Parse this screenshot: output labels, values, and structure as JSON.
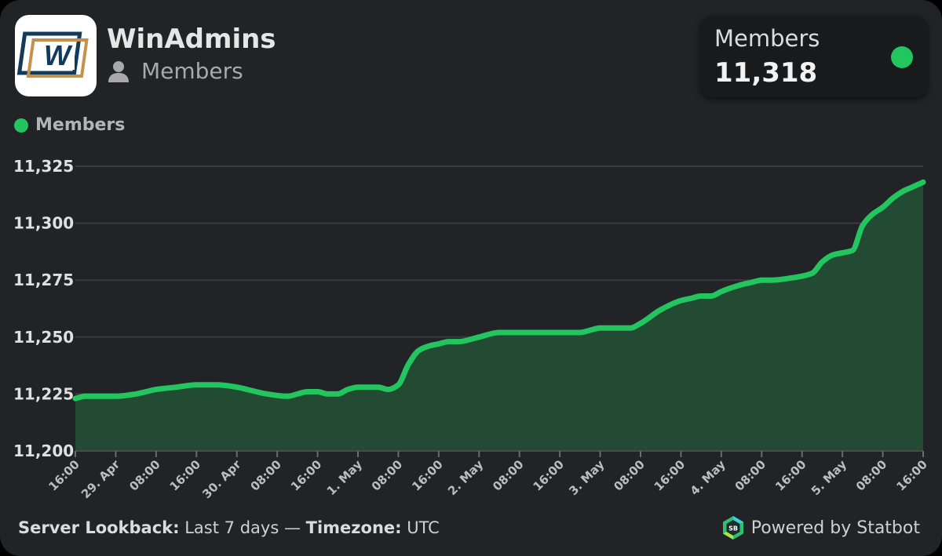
{
  "header": {
    "title": "WinAdmins",
    "subtitle": "Members",
    "logo_letter": "W"
  },
  "stat_card": {
    "label": "Members",
    "value": "11,318",
    "status_color": "#22c55e"
  },
  "legend": {
    "label": "Members"
  },
  "footer": {
    "lookback_label": "Server Lookback:",
    "lookback_value": "Last 7 days",
    "separator": "—",
    "timezone_label": "Timezone:",
    "timezone_value": "UTC",
    "powered_by": "Powered by Statbot",
    "statbot_logo_text": "SB"
  },
  "colors": {
    "background": "#222326",
    "accent": "#22c55e",
    "fill": "#234a33",
    "grid": "#3a3b3f"
  },
  "chart_data": {
    "type": "area",
    "title": "",
    "xlabel": "",
    "ylabel": "",
    "ylim": [
      11200,
      11325
    ],
    "yticks": [
      11200,
      11225,
      11250,
      11275,
      11300,
      11325
    ],
    "ytick_labels": [
      "11,200",
      "11,225",
      "11,250",
      "11,275",
      "11,300",
      "11,325"
    ],
    "xticks": [
      "16:00",
      "29. Apr",
      "08:00",
      "16:00",
      "30. Apr",
      "08:00",
      "16:00",
      "1. May",
      "08:00",
      "16:00",
      "2. May",
      "08:00",
      "16:00",
      "3. May",
      "08:00",
      "16:00",
      "4. May",
      "08:00",
      "16:00",
      "5. May",
      "08:00",
      "16:00"
    ],
    "xtick_hours": [
      0,
      8,
      16,
      24,
      32,
      40,
      48,
      56,
      64,
      72,
      80,
      88,
      96,
      104,
      112,
      120,
      128,
      136,
      144,
      152,
      160,
      168
    ],
    "grid": true,
    "legend_position": "top-left",
    "series": [
      {
        "name": "Members",
        "color": "#22c55e",
        "x_hours": [
          0,
          2,
          4,
          8,
          12,
          14,
          16,
          20,
          24,
          28,
          32,
          34,
          38,
          42,
          44,
          46,
          48,
          50,
          52,
          54,
          56,
          60,
          62,
          64,
          66,
          68,
          70,
          72,
          74,
          76,
          80,
          84,
          88,
          90,
          94,
          100,
          102,
          104,
          106,
          110,
          112,
          116,
          120,
          122,
          124,
          126,
          128,
          132,
          134,
          136,
          138,
          142,
          146,
          148,
          150,
          152,
          154,
          156,
          158,
          160,
          162,
          164,
          166,
          168
        ],
        "values": [
          11223,
          11224,
          11224,
          11224,
          11225,
          11226,
          11227,
          11228,
          11229,
          11229,
          11228,
          11227,
          11225,
          11224,
          11225,
          11226,
          11226,
          11225,
          11225,
          11227,
          11228,
          11228,
          11227,
          11229,
          11238,
          11244,
          11246,
          11247,
          11248,
          11248,
          11250,
          11252,
          11252,
          11252,
          11252,
          11252,
          11253,
          11254,
          11254,
          11254,
          11256,
          11262,
          11266,
          11267,
          11268,
          11268,
          11270,
          11273,
          11274,
          11275,
          11275,
          11276,
          11278,
          11283,
          11286,
          11287,
          11288,
          11299,
          11304,
          11307,
          11311,
          11314,
          11316,
          11318
        ]
      }
    ]
  }
}
